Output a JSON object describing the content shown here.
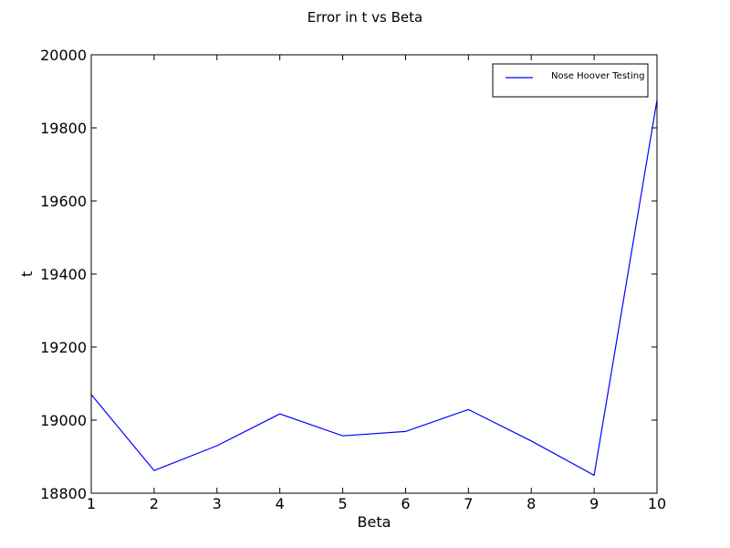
{
  "chart_data": {
    "type": "line",
    "title": "Error in t vs Beta",
    "xlabel": "Beta",
    "ylabel": "t",
    "xlim": [
      1,
      10
    ],
    "ylim": [
      18800,
      20000
    ],
    "xticks": [
      1,
      2,
      3,
      4,
      5,
      6,
      7,
      8,
      9,
      10
    ],
    "yticks": [
      18800,
      19000,
      19200,
      19400,
      19600,
      19800,
      20000
    ],
    "grid": false,
    "legend_position": "top-right",
    "series": [
      {
        "name": "Nose Hoover Testing",
        "color": "#0000ff",
        "x": [
          1,
          2,
          3,
          4,
          5,
          6,
          7,
          8,
          9,
          10
        ],
        "y": [
          19070,
          18862,
          18930,
          19017,
          18957,
          18969,
          19029,
          18943,
          18849,
          19876
        ]
      }
    ]
  }
}
